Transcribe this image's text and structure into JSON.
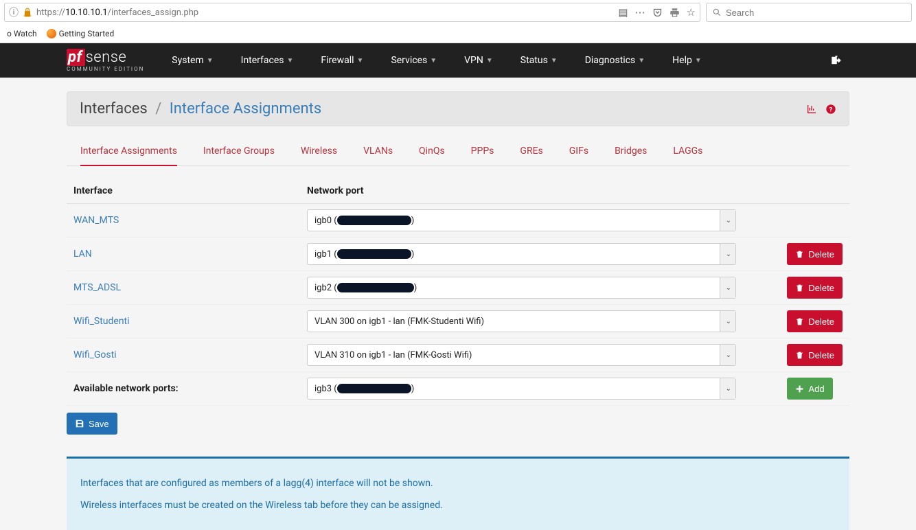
{
  "browser": {
    "url_prefix": "https://",
    "url_host": "10.10.10.1",
    "url_path": "/interfaces_assign.php",
    "search_placeholder": "Search",
    "bookmarks": {
      "watch": "o Watch",
      "getting_started": "Getting Started"
    }
  },
  "logo": {
    "brand_prefix": "pf",
    "brand_text": "sense",
    "sub": "COMMUNITY EDITION"
  },
  "nav": [
    {
      "label": "System"
    },
    {
      "label": "Interfaces"
    },
    {
      "label": "Firewall"
    },
    {
      "label": "Services"
    },
    {
      "label": "VPN"
    },
    {
      "label": "Status"
    },
    {
      "label": "Diagnostics"
    },
    {
      "label": "Help"
    }
  ],
  "breadcrumb": {
    "root": "Interfaces",
    "current": "Interface Assignments",
    "sep": "/"
  },
  "tabs": [
    {
      "label": "Interface Assignments",
      "active": true
    },
    {
      "label": "Interface Groups"
    },
    {
      "label": "Wireless"
    },
    {
      "label": "VLANs"
    },
    {
      "label": "QinQs"
    },
    {
      "label": "PPPs"
    },
    {
      "label": "GREs"
    },
    {
      "label": "GIFs"
    },
    {
      "label": "Bridges"
    },
    {
      "label": "LAGGs"
    }
  ],
  "columns": {
    "interface": "Interface",
    "port": "Network port"
  },
  "rows": [
    {
      "name": "WAN_MTS",
      "port_prefix": "igb0 (",
      "port_suffix": ")",
      "redacted": true,
      "redact_w": 108,
      "deletable": false
    },
    {
      "name": "LAN",
      "port_prefix": "igb1 (",
      "port_suffix": ")",
      "redacted": true,
      "redact_w": 108,
      "deletable": true
    },
    {
      "name": "MTS_ADSL",
      "port_prefix": "igb2 (",
      "port_suffix": ")",
      "redacted": true,
      "redact_w": 112,
      "deletable": true
    },
    {
      "name": "Wifi_Studenti",
      "port_text": "VLAN 300 on igb1 - lan (FMK-Studenti Wifi)",
      "redacted": false,
      "deletable": true
    },
    {
      "name": "Wifi_Gosti",
      "port_text": "VLAN 310 on igb1 - lan (FMK-Gosti Wifi)",
      "redacted": false,
      "deletable": true
    }
  ],
  "available": {
    "label": "Available network ports:",
    "port_prefix": "igb3 (",
    "port_suffix": ")",
    "redacted": true,
    "redact_w": 108
  },
  "actions": {
    "delete": "Delete",
    "add": "Add",
    "save": "Save"
  },
  "info": {
    "line1": "Interfaces that are configured as members of a lagg(4) interface will not be shown.",
    "line2": "Wireless interfaces must be created on the Wireless tab before they can be assigned."
  },
  "colors": {
    "brand_red": "#c8102e",
    "link_blue": "#3a7db7",
    "navbar_bg": "#212121",
    "info_bg": "#def0f7",
    "info_border": "#1b6da8",
    "success_green": "#4fa04f",
    "primary_blue": "#2470b5"
  }
}
